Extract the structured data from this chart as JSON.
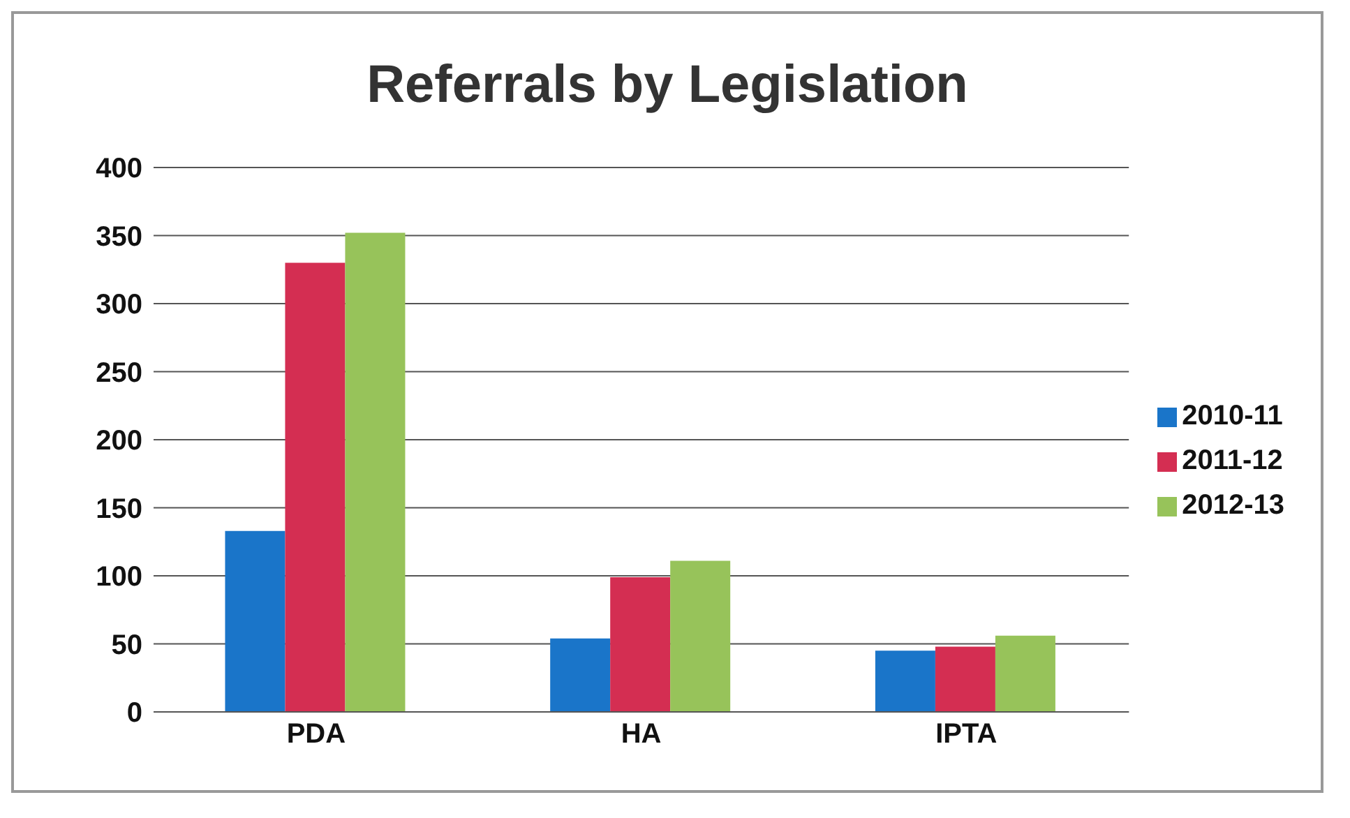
{
  "chart_data": {
    "type": "bar",
    "title": "Referrals by Legislation",
    "categories": [
      "PDA",
      "HA",
      "IPTA"
    ],
    "series": [
      {
        "name": "2010-11",
        "color": "#1a75c9",
        "values": [
          133,
          54,
          45
        ]
      },
      {
        "name": "2011-12",
        "color": "#d42e52",
        "values": [
          330,
          99,
          48
        ]
      },
      {
        "name": "2012-13",
        "color": "#97c35a",
        "values": [
          352,
          111,
          56
        ]
      }
    ],
    "ylim": [
      0,
      400
    ],
    "yticks": [
      0,
      50,
      100,
      150,
      200,
      250,
      300,
      350,
      400
    ],
    "grid": "y",
    "legend": "right"
  }
}
